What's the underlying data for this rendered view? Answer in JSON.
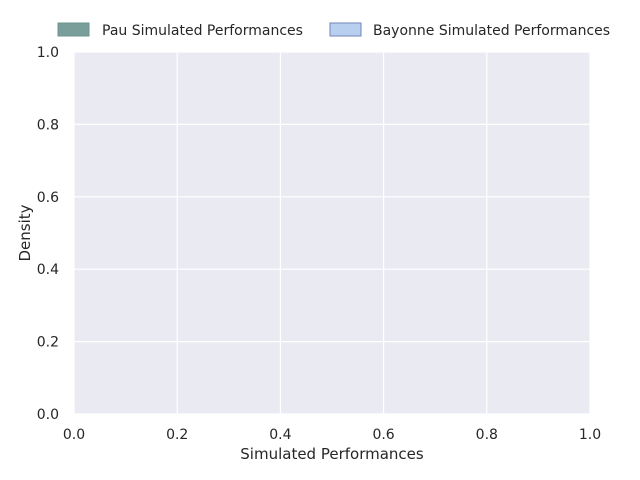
{
  "chart_data": {
    "type": "area",
    "title": "",
    "xlabel": "Simulated Performances",
    "ylabel": "Density",
    "xlim": [
      0.0,
      1.0
    ],
    "ylim": [
      0.0,
      1.0
    ],
    "xticks": [
      0.0,
      0.2,
      0.4,
      0.6,
      0.8,
      1.0
    ],
    "yticks": [
      0.0,
      0.2,
      0.4,
      0.6,
      0.8,
      1.0
    ],
    "xtick_labels": [
      "0.0",
      "0.2",
      "0.4",
      "0.6",
      "0.8",
      "1.0"
    ],
    "ytick_labels": [
      "0.0",
      "0.2",
      "0.4",
      "0.6",
      "0.8",
      "1.0"
    ],
    "grid": true,
    "legend_placement": "top, above plot",
    "series": [
      {
        "name": "Pau Simulated Performances",
        "color": "#7a9e9a",
        "edge_color": "#6e9490",
        "values": []
      },
      {
        "name": "Bayonne Simulated Performances",
        "color": "#b9cff0",
        "edge_color": "#6f84b7",
        "values": []
      }
    ],
    "plot_background": "#eaeaf2",
    "grid_color": "#ffffff"
  }
}
